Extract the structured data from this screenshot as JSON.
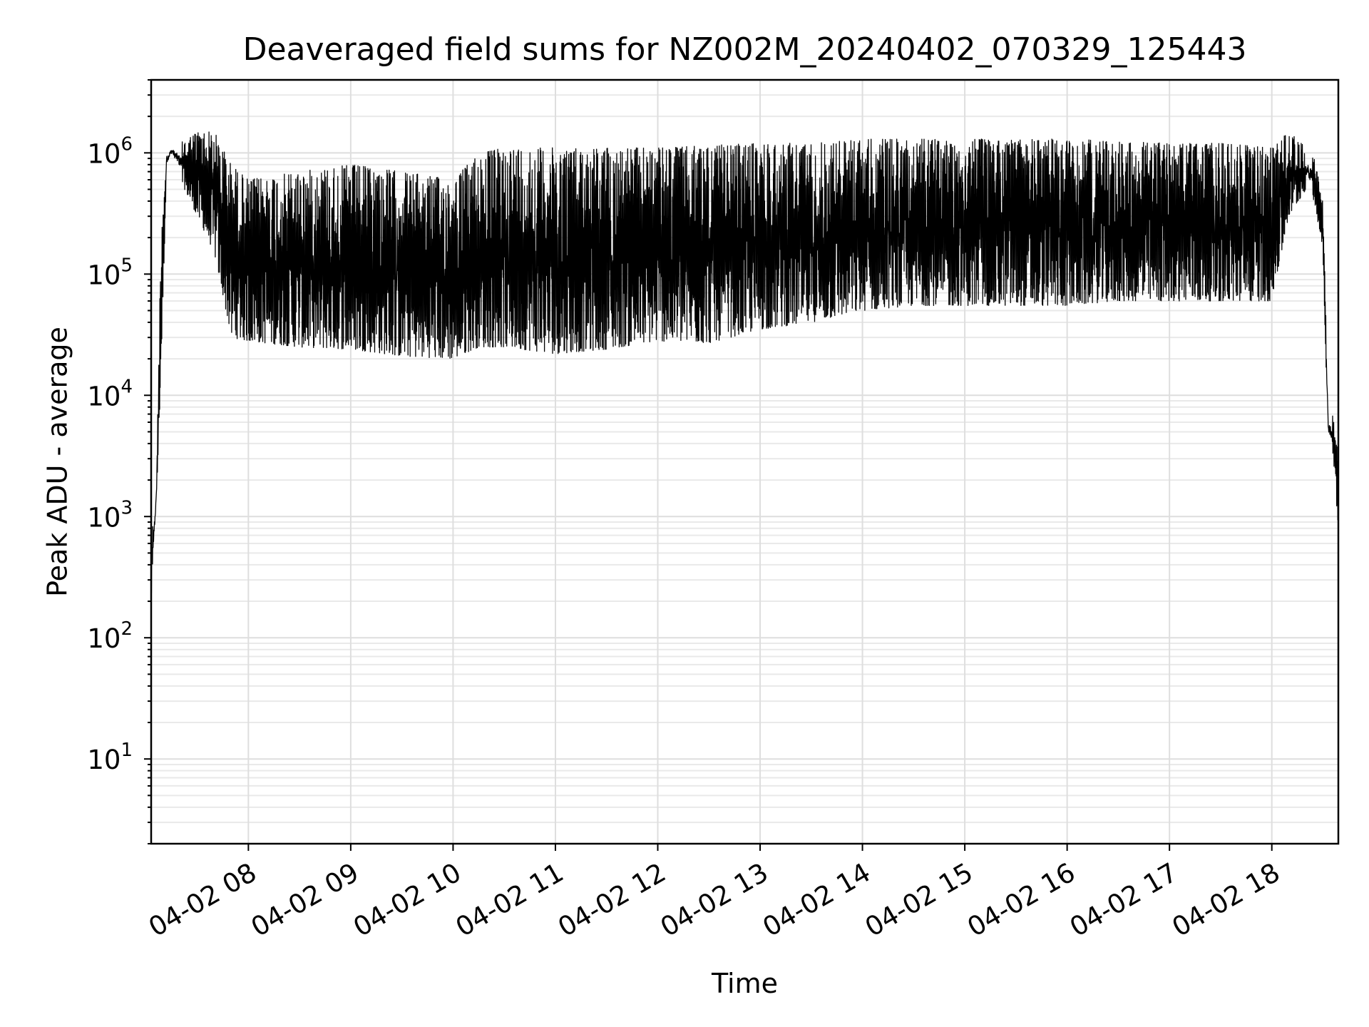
{
  "chart_data": {
    "type": "line",
    "title": "Deaveraged field sums for NZ002M_20240402_070329_125443",
    "xlabel": "Time",
    "ylabel": "Peak ADU - average",
    "y_scale": "log",
    "ylim": [
      2,
      4000000
    ],
    "xlim": [
      "2024-04-02 07:03",
      "2024-04-02 18:39"
    ],
    "grid": true,
    "legend": "none",
    "line_color": "#000000",
    "x_ticks": [
      {
        "value": "2024-04-02 08:00",
        "label": "04-02 08"
      },
      {
        "value": "2024-04-02 09:00",
        "label": "04-02 09"
      },
      {
        "value": "2024-04-02 10:00",
        "label": "04-02 10"
      },
      {
        "value": "2024-04-02 11:00",
        "label": "04-02 11"
      },
      {
        "value": "2024-04-02 12:00",
        "label": "04-02 12"
      },
      {
        "value": "2024-04-02 13:00",
        "label": "04-02 13"
      },
      {
        "value": "2024-04-02 14:00",
        "label": "04-02 14"
      },
      {
        "value": "2024-04-02 15:00",
        "label": "04-02 15"
      },
      {
        "value": "2024-04-02 16:00",
        "label": "04-02 16"
      },
      {
        "value": "2024-04-02 17:00",
        "label": "04-02 17"
      },
      {
        "value": "2024-04-02 18:00",
        "label": "04-02 18"
      }
    ],
    "y_ticks": [
      {
        "value": 10,
        "base": "10",
        "exp": "1"
      },
      {
        "value": 100,
        "base": "10",
        "exp": "2"
      },
      {
        "value": 1000,
        "base": "10",
        "exp": "3"
      },
      {
        "value": 10000,
        "base": "10",
        "exp": "4"
      },
      {
        "value": 100000,
        "base": "10",
        "exp": "5"
      },
      {
        "value": 1000000,
        "base": "10",
        "exp": "6"
      }
    ],
    "series": [
      {
        "envelope": [
          {
            "time": "2024-04-02 07:03",
            "low": 200,
            "high": 600
          },
          {
            "time": "2024-04-02 07:06",
            "low": 1100,
            "high": 1800
          },
          {
            "time": "2024-04-02 07:09",
            "low": 20000,
            "high": 300000
          },
          {
            "time": "2024-04-02 07:12",
            "low": 700000,
            "high": 1100000
          },
          {
            "time": "2024-04-02 07:15",
            "low": 900000,
            "high": 1200000
          },
          {
            "time": "2024-04-02 07:20",
            "low": 600000,
            "high": 1200000
          },
          {
            "time": "2024-04-02 07:30",
            "low": 300000,
            "high": 1500000
          },
          {
            "time": "2024-04-02 07:40",
            "low": 150000,
            "high": 1500000
          },
          {
            "time": "2024-04-02 07:50",
            "low": 30000,
            "high": 800000
          },
          {
            "time": "2024-04-02 08:00",
            "low": 28000,
            "high": 600000
          },
          {
            "time": "2024-04-02 08:30",
            "low": 25000,
            "high": 700000
          },
          {
            "time": "2024-04-02 09:00",
            "low": 24000,
            "high": 800000
          },
          {
            "time": "2024-04-02 09:30",
            "low": 21000,
            "high": 700000
          },
          {
            "time": "2024-04-02 10:00",
            "low": 20000,
            "high": 600000
          },
          {
            "time": "2024-04-02 10:15",
            "low": 25000,
            "high": 1000000
          },
          {
            "time": "2024-04-02 10:30",
            "low": 25000,
            "high": 1100000
          },
          {
            "time": "2024-04-02 11:00",
            "low": 22000,
            "high": 1100000
          },
          {
            "time": "2024-04-02 11:30",
            "low": 24000,
            "high": 1100000
          },
          {
            "time": "2024-04-02 12:00",
            "low": 28000,
            "high": 1100000
          },
          {
            "time": "2024-04-02 12:30",
            "low": 27000,
            "high": 1150000
          },
          {
            "time": "2024-04-02 13:00",
            "low": 35000,
            "high": 1200000
          },
          {
            "time": "2024-04-02 13:30",
            "low": 40000,
            "high": 1200000
          },
          {
            "time": "2024-04-02 14:00",
            "low": 50000,
            "high": 1300000
          },
          {
            "time": "2024-04-02 14:30",
            "low": 55000,
            "high": 1300000
          },
          {
            "time": "2024-04-02 15:00",
            "low": 55000,
            "high": 1300000
          },
          {
            "time": "2024-04-02 15:30",
            "low": 55000,
            "high": 1300000
          },
          {
            "time": "2024-04-02 16:00",
            "low": 55000,
            "high": 1300000
          },
          {
            "time": "2024-04-02 16:30",
            "low": 60000,
            "high": 1250000
          },
          {
            "time": "2024-04-02 17:00",
            "low": 60000,
            "high": 1200000
          },
          {
            "time": "2024-04-02 17:30",
            "low": 60000,
            "high": 1200000
          },
          {
            "time": "2024-04-02 18:00",
            "low": 60000,
            "high": 1100000
          },
          {
            "time": "2024-04-02 18:10",
            "low": 300000,
            "high": 1500000
          },
          {
            "time": "2024-04-02 18:20",
            "low": 500000,
            "high": 1100000
          },
          {
            "time": "2024-04-02 18:25",
            "low": 400000,
            "high": 900000
          },
          {
            "time": "2024-04-02 18:30",
            "low": 150000,
            "high": 400000
          },
          {
            "time": "2024-04-02 18:33",
            "low": 4000,
            "high": 8000
          },
          {
            "time": "2024-04-02 18:36",
            "low": 3000,
            "high": 7000
          },
          {
            "time": "2024-04-02 18:39",
            "low": 800,
            "high": 3000
          }
        ]
      }
    ]
  }
}
